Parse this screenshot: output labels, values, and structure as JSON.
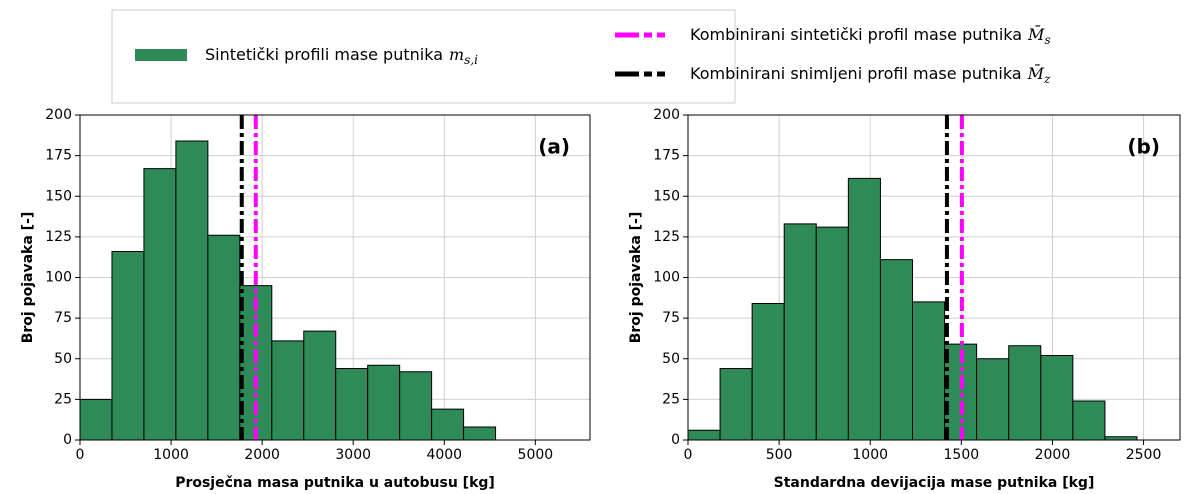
{
  "legend": [
    {
      "text": "Sintetički profili mase putnika",
      "symbol": "m",
      "subscript": "s,i",
      "color": "#2e8b57",
      "style": "bar"
    },
    {
      "text": "Kombinirani sintetički profil mase putnika",
      "symbol": "M̄",
      "subscript": "s",
      "color": "#ff00ff",
      "style": "dash"
    },
    {
      "text": "Kombinirani snimljeni profil mase putnika",
      "symbol": "M̄",
      "subscript": "z",
      "color": "#000000",
      "style": "dash"
    }
  ],
  "chart_data": [
    {
      "type": "histogram",
      "annotation": "(a)",
      "x_label": "Prosječna masa putnika u autobusu [kg]",
      "y_label": "Broj pojavaka [-]",
      "color": "#2e8b57",
      "bins": [
        0,
        351,
        702,
        1053,
        1404,
        1755,
        2106,
        2457,
        2808,
        3159,
        3510,
        3861,
        4212,
        4563
      ],
      "values": [
        25,
        116,
        167,
        184,
        126,
        95,
        61,
        67,
        44,
        46,
        42,
        19,
        8
      ],
      "vlines": [
        {
          "x": 1776,
          "color": "#000000"
        },
        {
          "x": 1930,
          "color": "#ff00ff"
        }
      ],
      "xlim": [
        0,
        5600
      ],
      "xticks": [
        0,
        1000,
        2000,
        3000,
        4000,
        5000
      ],
      "ylim": [
        0,
        200
      ],
      "yticks": [
        0,
        25,
        50,
        75,
        100,
        125,
        150,
        175,
        200
      ],
      "grid": true
    },
    {
      "type": "histogram",
      "annotation": "(b)",
      "x_label": "Standardna devijacija mase putnika [kg]",
      "y_label": "Broj pojavaka [-]",
      "color": "#2e8b57",
      "bins": [
        0,
        176,
        352,
        528,
        704,
        880,
        1056,
        1232,
        1408,
        1584,
        1760,
        1936,
        2112,
        2288,
        2464
      ],
      "values": [
        6,
        44,
        84,
        133,
        131,
        161,
        111,
        85,
        59,
        50,
        58,
        52,
        24,
        2
      ],
      "vlines": [
        {
          "x": 1421,
          "color": "#000000"
        },
        {
          "x": 1503,
          "color": "#ff00ff"
        }
      ],
      "xlim": [
        0,
        2700
      ],
      "xticks": [
        0,
        500,
        1000,
        1500,
        2000,
        2500
      ],
      "ylim": [
        0,
        200
      ],
      "yticks": [
        0,
        25,
        50,
        75,
        100,
        125,
        150,
        175,
        200
      ],
      "grid": true
    }
  ]
}
